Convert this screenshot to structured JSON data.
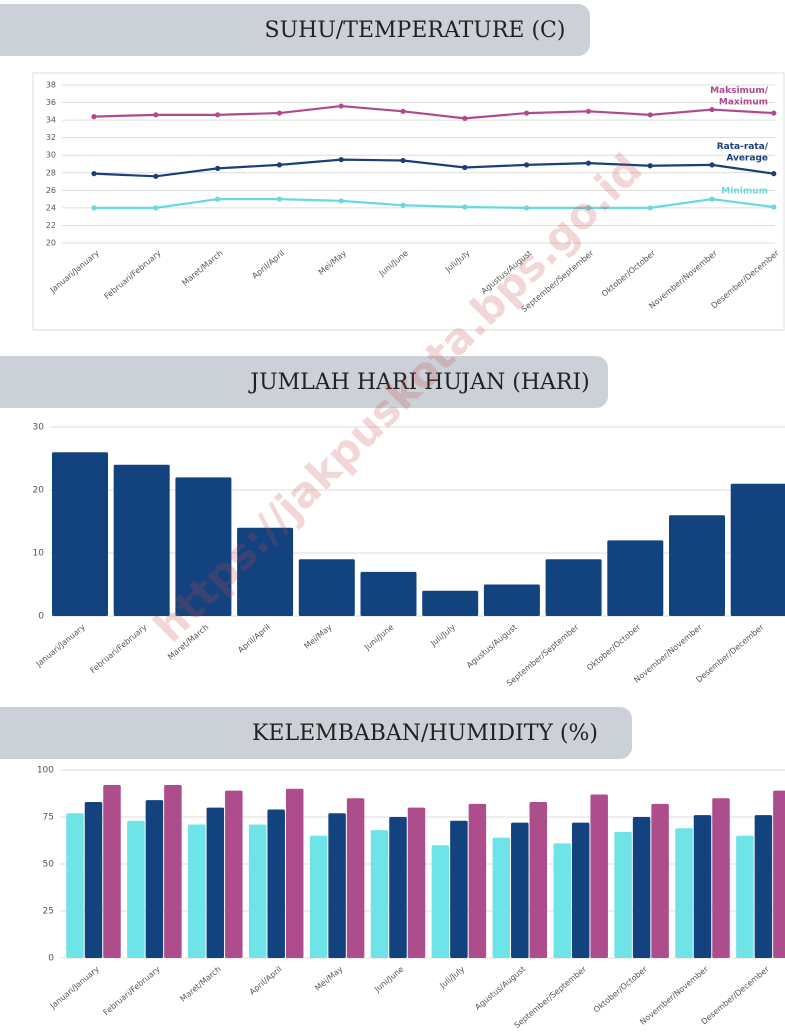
{
  "chart_data": [
    {
      "type": "line",
      "title": "SUHU/TEMPERATURE (C)",
      "categories": [
        "Januari/January",
        "Februari/February",
        "Maret/March",
        "April/April",
        "Mei/May",
        "Juni/June",
        "Juli/July",
        "Agustus/August",
        "September/September",
        "Oktober/October",
        "November/November",
        "Desember/December"
      ],
      "series": [
        {
          "name": "Maksimum/\nMaximum",
          "color": "#b04a8f",
          "values": [
            34.4,
            34.6,
            34.6,
            34.8,
            35.6,
            35.0,
            34.2,
            34.8,
            35.0,
            34.6,
            35.2,
            34.8
          ]
        },
        {
          "name": "Rata-rata/\nAverage",
          "color": "#1b3f7a",
          "values": [
            27.9,
            27.6,
            28.5,
            28.9,
            29.5,
            29.4,
            28.6,
            28.9,
            29.1,
            28.8,
            28.9,
            27.9
          ]
        },
        {
          "name": "Minimum",
          "color": "#6ad8e0",
          "values": [
            24.0,
            24.0,
            25.0,
            25.0,
            24.8,
            24.3,
            24.1,
            24.0,
            24.0,
            24.0,
            25.0,
            24.1
          ]
        }
      ],
      "ylim": [
        20,
        38
      ],
      "yticks": [
        20,
        22,
        24,
        26,
        28,
        30,
        32,
        34,
        36,
        38
      ],
      "grid": true
    },
    {
      "type": "bar",
      "title": "JUMLAH HARI HUJAN (HARI)",
      "categories": [
        "Januari/January",
        "Februari/February",
        "Maret/March",
        "April/April",
        "Mei/May",
        "Juni/June",
        "Juli/July",
        "Agustus/August",
        "September/September",
        "Oktober/October",
        "November/November",
        "Desember/December"
      ],
      "series": [
        {
          "color": "#12437f",
          "values": [
            26,
            24,
            22,
            14,
            9,
            7,
            4,
            5,
            9,
            12,
            16,
            21
          ]
        }
      ],
      "ylim": [
        0,
        30
      ],
      "yticks": [
        0,
        10,
        20,
        30
      ],
      "grid": true
    },
    {
      "type": "bar",
      "title": "KELEMBABAN/HUMIDITY (%)",
      "categories": [
        "Januari/January",
        "Februari/February",
        "Maret/March",
        "April/April",
        "Mei/May",
        "Juni/June",
        "Juli/July",
        "Agustus/August",
        "September/September",
        "Oktober/October",
        "November/November",
        "Desember/December"
      ],
      "series": [
        {
          "color": "#6ee3e8",
          "values": [
            77,
            73,
            71,
            71,
            65,
            68,
            60,
            64,
            61,
            67,
            69,
            65
          ]
        },
        {
          "color": "#12437f",
          "values": [
            83,
            84,
            80,
            79,
            77,
            75,
            73,
            72,
            72,
            75,
            76,
            76
          ]
        },
        {
          "color": "#ad4d8c",
          "values": [
            92,
            92,
            89,
            90,
            85,
            80,
            82,
            83,
            87,
            82,
            85,
            89
          ]
        }
      ],
      "ylim": [
        0,
        100
      ],
      "yticks": [
        0,
        25,
        50,
        75,
        100
      ],
      "grid": true
    }
  ],
  "watermark": "https://jakpuskota.bps.go.id"
}
